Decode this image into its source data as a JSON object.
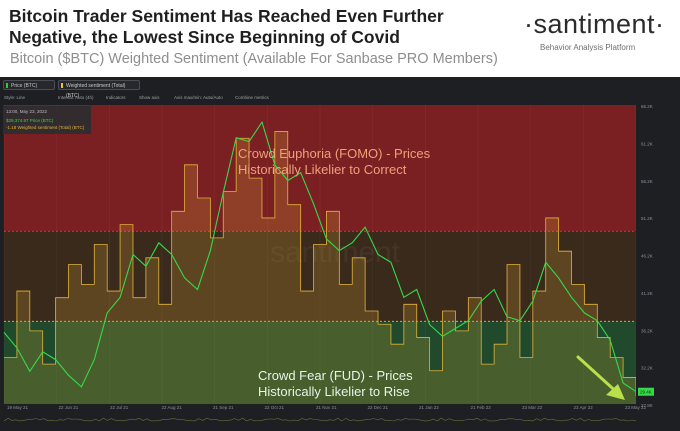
{
  "header": {
    "headline": "Bitcoin Trader Sentiment Has Reached Even Further Negative, the Lowest Since Beginning of Covid",
    "subtitle": "Bitcoin ($BTC) Weighted Sentiment (Available For Sanbase PRO Members)"
  },
  "brand": {
    "name": "·santiment·",
    "tagline": "Behavior Analysis Platform",
    "watermark": "santiment"
  },
  "toolbar": {
    "metrics": [
      {
        "label": "Price (BTC)",
        "color": "#26d13a"
      },
      {
        "label": "Weighted sentiment (Total) (BTC)",
        "color": "#e8c52a"
      }
    ],
    "options": [
      "Style: Line",
      "Interval: Auto (4h)",
      "Indicators",
      "Show axis",
      "Axis max/min: Auto/Auto",
      "Combine metrics"
    ]
  },
  "tooltip": {
    "date": "13:00, May 23, 2022",
    "price": "$29,374.97 Price (BTC)",
    "sentiment": "-1.18 Weighted sentiment (Total) (BTC)"
  },
  "zones": {
    "euphoria": "Crowd Euphoria (FOMO) - Prices Historically Likelier to Correct",
    "fear": "Crowd Fear (FUD) - Prices Historically Likelier to Rise"
  },
  "colors": {
    "euphoria_zone": "#7a2023",
    "neutral_zone": "#3a2a1c",
    "fear_zone": "#204a2b",
    "price_line": "#37d84a",
    "sentiment_line": "#e2b33a",
    "euphoria_text": "#f0a07a",
    "fear_text": "#e6f5ea",
    "arrow": "#b9e04a"
  },
  "chart_data": {
    "type": "line",
    "title": "Bitcoin ($BTC) Weighted Sentiment",
    "x_ticks": [
      "19 May 21",
      "22 Jun 21",
      "22 Jul 21",
      "22 Aug 21",
      "21 Sep 21",
      "22 Oct 21",
      "21 Nov 21",
      "22 Dec 21",
      "21 Jan 22",
      "21 Feb 22",
      "23 Mar 22",
      "23 Apr 22",
      "23 May 22"
    ],
    "y_right_ticks": [
      "66.2K",
      "61.2K",
      "56.2K",
      "51.2K",
      "46.2K",
      "41.2K",
      "36.2K",
      "32.2K",
      "27.8K"
    ],
    "price_ylim": [
      27800,
      66200
    ],
    "last_price": "29.4K",
    "series": [
      {
        "name": "Price (BTC)",
        "values": [
          37000,
          35000,
          32000,
          34500,
          33500,
          31500,
          30000,
          33500,
          39500,
          41500,
          47000,
          45500,
          48500,
          47000,
          44000,
          42500,
          47500,
          55000,
          62000,
          61500,
          64000,
          58500,
          56500,
          57500,
          53500,
          49000,
          47500,
          48500,
          50500,
          47000,
          46000,
          41500,
          42500,
          38000,
          36500,
          37500,
          38500,
          41000,
          42500,
          39000,
          38500,
          41000,
          46000,
          44000,
          41500,
          39500,
          38500,
          36000,
          30500,
          29400
        ]
      },
      {
        "name": "Weighted sentiment (Total) (BTC)",
        "values": [
          -0.6,
          0.4,
          -0.2,
          -0.7,
          0.3,
          0.8,
          0.5,
          1.1,
          0.4,
          1.4,
          0.3,
          0.9,
          0.2,
          1.6,
          2.3,
          1.8,
          1.2,
          1.9,
          2.7,
          2.1,
          1.5,
          2.8,
          1.7,
          0.4,
          1.1,
          1.6,
          0.5,
          0.9,
          0.1,
          -0.1,
          -0.4,
          0.2,
          -0.3,
          -0.8,
          0.1,
          -0.2,
          0.3,
          -0.7,
          -0.4,
          0.8,
          -0.6,
          0.4,
          1.5,
          1.0,
          0.5,
          0.2,
          -0.3,
          -0.6,
          -0.9,
          -1.18
        ]
      }
    ],
    "sentiment_thresholds": {
      "fomo": 1.3,
      "fud": 0.0
    },
    "sentiment_ylim": [
      -1.3,
      3.2
    ],
    "latest": {
      "date": "13:00, May 23, 2022",
      "price": 29374.97,
      "sentiment": -1.18
    }
  }
}
